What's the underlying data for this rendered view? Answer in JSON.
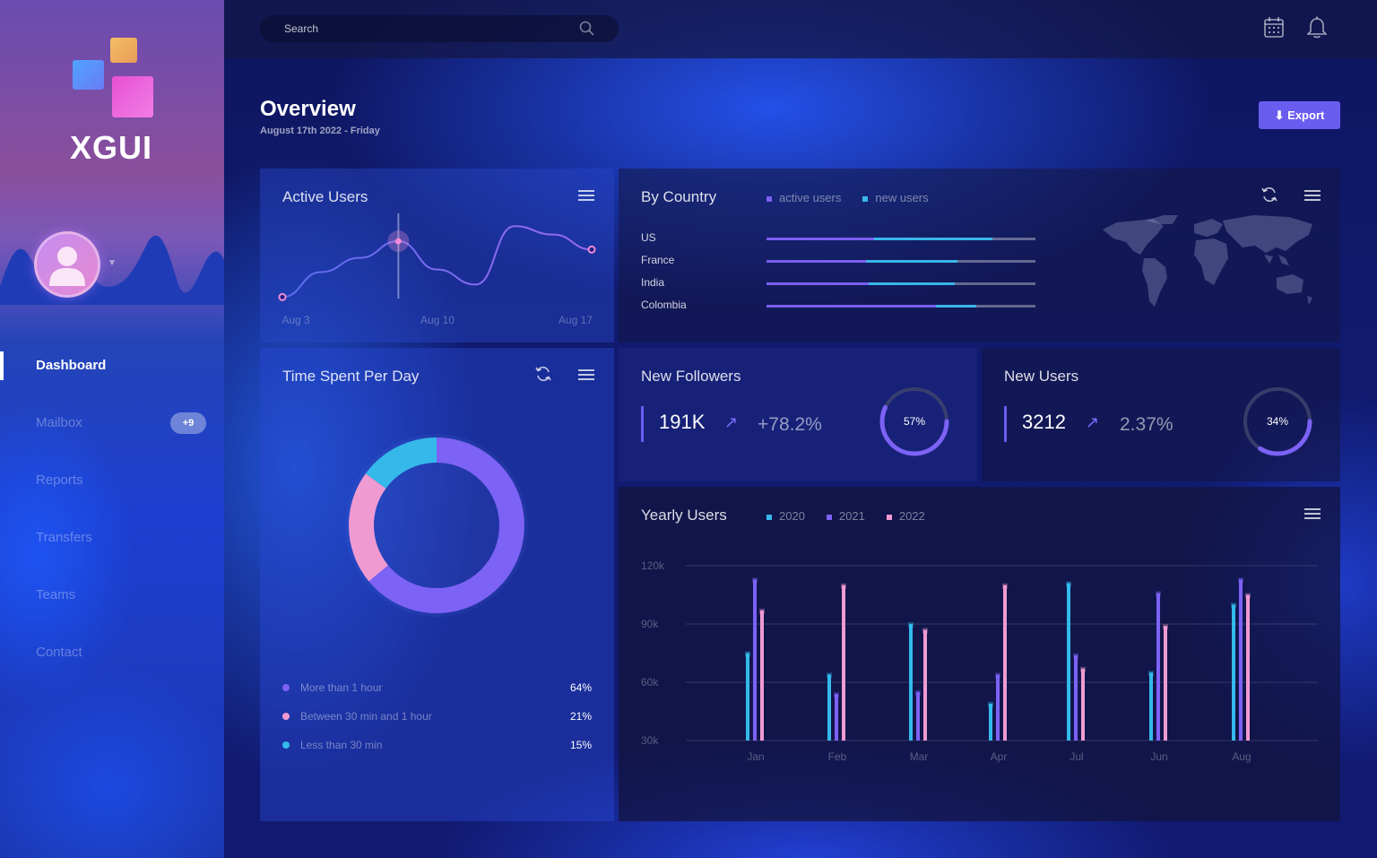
{
  "app": {
    "brand": "XGUI"
  },
  "sidebar": {
    "items": [
      {
        "label": "Dashboard",
        "active": true
      },
      {
        "label": "Mailbox",
        "badge": "+9"
      },
      {
        "label": "Reports"
      },
      {
        "label": "Transfers"
      },
      {
        "label": "Teams"
      },
      {
        "label": "Contact"
      }
    ]
  },
  "topbar": {
    "search_placeholder": "Search",
    "icons": [
      "calendar-icon",
      "bell-icon"
    ]
  },
  "header": {
    "title": "Overview",
    "date": "August 17th 2022 - Friday",
    "export_label": "⬇ Export"
  },
  "active_users": {
    "title": "Active Users",
    "x_labels": [
      "Aug 3",
      "Aug 10",
      "Aug 17"
    ]
  },
  "by_country": {
    "title": "By Country",
    "legend": [
      {
        "name": "active users",
        "color": "#7a5ff0"
      },
      {
        "name": "new users",
        "color": "#39b6ea"
      }
    ],
    "rows": [
      {
        "country": "US",
        "active": 0.4,
        "new": 0.84
      },
      {
        "country": "France",
        "active": 0.37,
        "new": 0.71
      },
      {
        "country": "India",
        "active": 0.38,
        "new": 0.7
      },
      {
        "country": "Colombia",
        "active": 0.63,
        "new": 0.78
      }
    ]
  },
  "time_spent": {
    "title": "Time Spent Per Day",
    "slices": [
      {
        "label": "More than 1 hour",
        "pct": "64%",
        "value": 64,
        "color": "#7c62f5"
      },
      {
        "label": "Between 30 min and 1 hour",
        "pct": "21%",
        "value": 21,
        "color": "#f09ad2"
      },
      {
        "label": "Less than 30 min",
        "pct": "15%",
        "value": 15,
        "color": "#34b9ea"
      }
    ]
  },
  "new_followers": {
    "title": "New Followers",
    "value": "191K",
    "change": "+78.2%",
    "ring": "57%",
    "ring_value": 57,
    "arrow": "↗"
  },
  "new_users": {
    "title": "New Users",
    "value": "3212",
    "change": "2.37%",
    "ring": "34%",
    "ring_value": 34,
    "arrow": "↗"
  },
  "yearly_users": {
    "title": "Yearly Users",
    "legend": [
      {
        "name": "2020",
        "color": "#34b9ea"
      },
      {
        "name": "2021",
        "color": "#7c62f5"
      },
      {
        "name": "2022",
        "color": "#f09ad2"
      }
    ]
  },
  "chart_data": [
    {
      "type": "line",
      "title": "Active Users",
      "x_ticks": [
        "Aug 3",
        "Aug 10",
        "Aug 17"
      ],
      "series": [
        {
          "values": [
            0.05,
            0.35,
            0.52,
            0.72,
            0.38,
            0.2,
            0.9,
            0.8,
            0.62
          ]
        }
      ],
      "grid": false
    },
    {
      "type": "bar",
      "title": "Yearly Users",
      "categories": [
        "Jan",
        "Feb",
        "Mar",
        "Apr",
        "Jul",
        "Jun",
        "Aug"
      ],
      "series": [
        {
          "name": "2020",
          "values": [
            75000,
            64000,
            90000,
            49000,
            111000,
            65000,
            100000
          ]
        },
        {
          "name": "2021",
          "values": [
            113000,
            54000,
            55000,
            64000,
            74000,
            106000,
            113000
          ]
        },
        {
          "name": "2022",
          "values": [
            97000,
            110000,
            87000,
            110000,
            67000,
            89000,
            105000
          ]
        }
      ],
      "y_ticks": [
        "120k",
        "90k",
        "60k",
        "30k"
      ],
      "ylim": [
        30000,
        120000
      ],
      "grid": true
    }
  ]
}
